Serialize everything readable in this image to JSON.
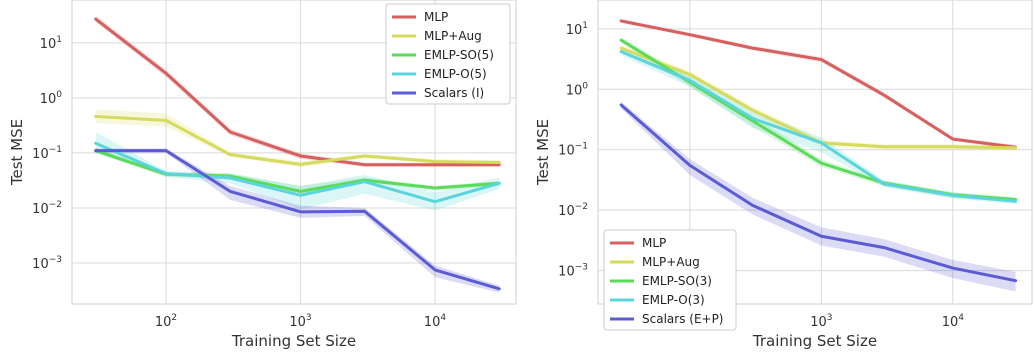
{
  "chart_data": [
    {
      "type": "line",
      "xscale": "log",
      "yscale": "log",
      "xlabel": "Training Set Size",
      "ylabel": "Test MSE",
      "xlim": [
        20,
        40000
      ],
      "ylim": [
        0.00018,
        60
      ],
      "xticks": [
        {
          "base": "10",
          "exp": "2",
          "value": 100
        },
        {
          "base": "10",
          "exp": "3",
          "value": 1000
        },
        {
          "base": "10",
          "exp": "4",
          "value": 10000
        }
      ],
      "yticks": [
        {
          "base": "10",
          "exp": "−3",
          "value": 0.001
        },
        {
          "base": "10",
          "exp": "−2",
          "value": 0.01
        },
        {
          "base": "10",
          "exp": "−1",
          "value": 0.1
        },
        {
          "base": "10",
          "exp": "0",
          "value": 1
        },
        {
          "base": "10",
          "exp": "1",
          "value": 10
        }
      ],
      "grid": true,
      "legend_position": "top-right",
      "x": [
        30,
        100,
        300,
        1000,
        3000,
        10000,
        30000
      ],
      "series": [
        {
          "name": "MLP",
          "color": "#d65f5f",
          "values": [
            27,
            2.8,
            0.24,
            0.088,
            0.061,
            0.061,
            0.061
          ],
          "lower": [
            24,
            2.4,
            0.21,
            0.078,
            0.056,
            0.056,
            0.056
          ],
          "upper": [
            31,
            3.2,
            0.27,
            0.098,
            0.066,
            0.066,
            0.066
          ]
        },
        {
          "name": "MLP+Aug",
          "color": "#d5db5c",
          "values": [
            0.46,
            0.39,
            0.093,
            0.062,
            0.088,
            0.07,
            0.067
          ],
          "lower": [
            0.35,
            0.3,
            0.085,
            0.055,
            0.08,
            0.064,
            0.061
          ],
          "upper": [
            0.62,
            0.52,
            0.102,
            0.07,
            0.097,
            0.077,
            0.074
          ]
        },
        {
          "name": "EMLP-SO(5)",
          "color": "#5bdb5b",
          "values": [
            0.11,
            0.041,
            0.038,
            0.02,
            0.032,
            0.023,
            0.028
          ],
          "lower": [
            0.1,
            0.037,
            0.034,
            0.016,
            0.029,
            0.021,
            0.025
          ],
          "upper": [
            0.125,
            0.045,
            0.042,
            0.025,
            0.036,
            0.025,
            0.031
          ]
        },
        {
          "name": "EMLP-O(5)",
          "color": "#5bd5db",
          "values": [
            0.15,
            0.042,
            0.035,
            0.017,
            0.03,
            0.013,
            0.028
          ],
          "lower": [
            0.1,
            0.037,
            0.028,
            0.0095,
            0.018,
            0.009,
            0.022
          ],
          "upper": [
            0.24,
            0.047,
            0.043,
            0.025,
            0.04,
            0.019,
            0.036
          ]
        },
        {
          "name": "Scalars (I)",
          "color": "#5b5bd6",
          "values": [
            0.11,
            0.11,
            0.02,
            0.0085,
            0.0087,
            0.00075,
            0.00034
          ],
          "lower": [
            0.1,
            0.1,
            0.014,
            0.0066,
            0.0072,
            0.00055,
            0.00029
          ],
          "upper": [
            0.12,
            0.12,
            0.025,
            0.011,
            0.01,
            0.0009,
            0.00039
          ]
        }
      ]
    },
    {
      "type": "line",
      "xscale": "log",
      "yscale": "log",
      "xlabel": "Training Set Size",
      "ylabel": "Test MSE",
      "xlim": [
        20,
        40000
      ],
      "ylim": [
        0.00028,
        30
      ],
      "xticks": [
        {
          "base": "10",
          "exp": "2",
          "value": 100
        },
        {
          "base": "10",
          "exp": "3",
          "value": 1000
        },
        {
          "base": "10",
          "exp": "4",
          "value": 10000
        }
      ],
      "yticks": [
        {
          "base": "10",
          "exp": "−3",
          "value": 0.001
        },
        {
          "base": "10",
          "exp": "−2",
          "value": 0.01
        },
        {
          "base": "10",
          "exp": "−1",
          "value": 0.1
        },
        {
          "base": "10",
          "exp": "0",
          "value": 1
        },
        {
          "base": "10",
          "exp": "1",
          "value": 10
        }
      ],
      "grid": true,
      "legend_position": "bottom-left",
      "x": [
        30,
        100,
        300,
        1000,
        3000,
        10000,
        30000
      ],
      "series": [
        {
          "name": "MLP",
          "color": "#d65f5f",
          "values": [
            13.5,
            8,
            4.8,
            3.1,
            0.8,
            0.15,
            0.11
          ],
          "lower": [
            12.5,
            7.4,
            4.4,
            2.8,
            0.72,
            0.14,
            0.1
          ],
          "upper": [
            14.5,
            8.6,
            5.2,
            3.4,
            0.88,
            0.16,
            0.12
          ]
        },
        {
          "name": "MLP+Aug",
          "color": "#d5db5c",
          "values": [
            4.8,
            1.75,
            0.45,
            0.13,
            0.112,
            0.112,
            0.108
          ],
          "lower": [
            4.2,
            1.5,
            0.38,
            0.115,
            0.1,
            0.1,
            0.098
          ],
          "upper": [
            5.4,
            2.0,
            0.52,
            0.145,
            0.124,
            0.124,
            0.118
          ]
        },
        {
          "name": "EMLP-SO(3)",
          "color": "#5bdb5b",
          "values": [
            6.5,
            1.3,
            0.3,
            0.06,
            0.028,
            0.018,
            0.015
          ],
          "lower": [
            5.8,
            1.1,
            0.24,
            0.052,
            0.025,
            0.016,
            0.0135
          ],
          "upper": [
            7.2,
            1.5,
            0.37,
            0.069,
            0.031,
            0.02,
            0.0165
          ]
        },
        {
          "name": "EMLP-O(3)",
          "color": "#5bd5db",
          "values": [
            4.2,
            1.4,
            0.33,
            0.13,
            0.027,
            0.0175,
            0.014
          ],
          "lower": [
            3.6,
            1.1,
            0.23,
            0.09,
            0.024,
            0.0155,
            0.0125
          ],
          "upper": [
            4.9,
            1.7,
            0.45,
            0.16,
            0.031,
            0.0195,
            0.0155
          ]
        },
        {
          "name": "Scalars (E+P)",
          "color": "#5b5bd6",
          "values": [
            0.55,
            0.055,
            0.012,
            0.0037,
            0.0024,
            0.0011,
            0.00068
          ],
          "lower": [
            0.48,
            0.038,
            0.0085,
            0.0026,
            0.0017,
            0.00075,
            0.00045
          ],
          "upper": [
            0.62,
            0.07,
            0.016,
            0.0052,
            0.0033,
            0.0015,
            0.00095
          ]
        }
      ]
    }
  ]
}
